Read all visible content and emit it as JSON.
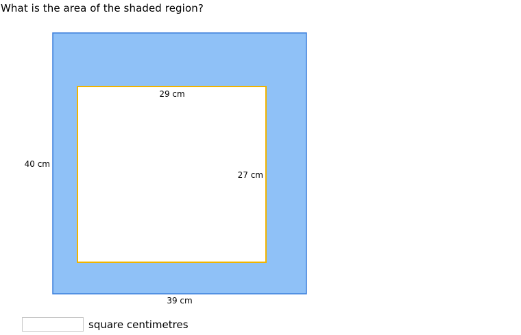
{
  "question": {
    "text": "What is the area of the shaded region?"
  },
  "figure": {
    "outer_height_label": "40 cm",
    "outer_width_label": "39 cm",
    "inner_width_label": "29 cm",
    "inner_height_label": "27 cm",
    "colors": {
      "shaded_fill": "#8fc1f7",
      "shaded_border": "#3b7fdc",
      "inner_fill": "#ffffff",
      "inner_border": "#f0b400"
    }
  },
  "answer": {
    "value": "",
    "placeholder": "",
    "unit": "square centimetres"
  }
}
